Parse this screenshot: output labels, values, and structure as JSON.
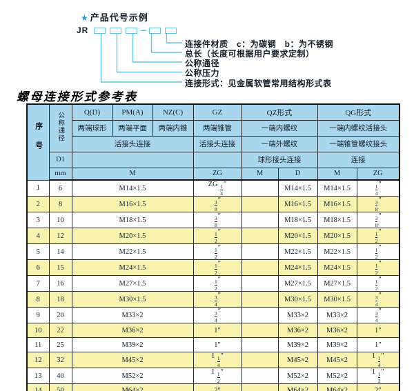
{
  "diagram": {
    "star": "★",
    "title": "产品代号示例",
    "code_prefix": "JR",
    "labels": [
      "连接件材质　c：为碳钢　b：为不锈钢",
      "总长（长度可根据用户要求定制）",
      "公称通径",
      "公称压力",
      "连接形式：见金属软管常用结构形式表"
    ]
  },
  "table": {
    "title": "螺母连接形式参考表",
    "header": {
      "col_no": "序号",
      "col_dn": "公称通径",
      "dn_sub1": "D1",
      "dn_sub2": "mm",
      "groups": [
        "Q(D)",
        "PM(A)",
        "NZ(C)",
        "GZ",
        "QZ形式",
        "QG形式"
      ],
      "desc1": [
        "两端球形",
        "两端平面",
        "两端内锥",
        "两端锥管",
        "一端内螺纹",
        "一端内螺纹活接头"
      ],
      "desc2": [
        "活接头连接",
        "活接头连接",
        "一端外螺纹",
        "一端锥管螺纹接头"
      ],
      "desc3": [
        "球形接头连接",
        "连接"
      ],
      "units": [
        "M",
        "ZG",
        "M",
        "D",
        "M",
        "ZG"
      ]
    },
    "rows": [
      {
        "no": "1",
        "dn": "6",
        "m": "M14×1.5",
        "zg": "ZG 1/4″",
        "qz_m": "",
        "qz_d": "M14×1.5",
        "qg_m": "M14×1.5",
        "qg_zg": "1/4″"
      },
      {
        "no": "2",
        "dn": "8",
        "m": "M16×1.5",
        "zg": "3/8″",
        "qz_m": "",
        "qz_d": "M16×1.5",
        "qg_m": "M16×1.5",
        "qg_zg": "3/8″"
      },
      {
        "no": "3",
        "dn": "10",
        "m": "M18×1.5",
        "zg": "3/8″",
        "qz_m": "",
        "qz_d": "M18×1.5",
        "qg_m": "M18×1.5",
        "qg_zg": "3/8″"
      },
      {
        "no": "4",
        "dn": "12",
        "m": "M20×1.5",
        "zg": "1/2″",
        "qz_m": "",
        "qz_d": "M20×1.5",
        "qg_m": "M20×1.5",
        "qg_zg": "1/2″"
      },
      {
        "no": "5",
        "dn": "14",
        "m": "M22×1.5",
        "zg": "1/2″",
        "qz_m": "",
        "qz_d": "M22×1.5",
        "qg_m": "M22×1.5",
        "qg_zg": "1/2″"
      },
      {
        "no": "6",
        "dn": "15",
        "m": "M24×1.5",
        "zg": "1/2″",
        "qz_m": "",
        "qz_d": "M24×1.5",
        "qg_m": "M24×1.5",
        "qg_zg": "1/2″"
      },
      {
        "no": "7",
        "dn": "16",
        "m": "M27×1.5",
        "zg": "1/2″",
        "qz_m": "",
        "qz_d": "M27×1.5",
        "qg_m": "M27×1.5",
        "qg_zg": "1/2″"
      },
      {
        "no": "8",
        "dn": "18",
        "m": "M30×1.5",
        "zg": "3/4″",
        "qz_m": "",
        "qz_d": "M30×1.5",
        "qg_m": "M30×1.5",
        "qg_zg": "3/4″"
      },
      {
        "no": "9",
        "dn": "20",
        "m": "M33×2",
        "zg": "3/4″",
        "qz_m": "",
        "qz_d": "M33×2",
        "qg_m": "M33×2",
        "qg_zg": "3/4″"
      },
      {
        "no": "10",
        "dn": "22",
        "m": "M36×2",
        "zg": "1″",
        "qz_m": "",
        "qz_d": "M36×2",
        "qg_m": "M36×2",
        "qg_zg": "1″"
      },
      {
        "no": "11",
        "dn": "25",
        "m": "M39×2",
        "zg": "1″",
        "qz_m": "",
        "qz_d": "M39×2",
        "qg_m": "M39×2",
        "qg_zg": "1″"
      },
      {
        "no": "12",
        "dn": "32",
        "m": "M45×2",
        "zg": "1 1/4″",
        "qz_m": "",
        "qz_d": "M45×2",
        "qg_m": "M45×2",
        "qg_zg": "1 1/4″"
      },
      {
        "no": "13",
        "dn": "40",
        "m": "M52×2",
        "zg": "1 1/2″",
        "qz_m": "",
        "qz_d": "M52×2",
        "qg_m": "M52×2",
        "qg_zg": "1 1/2″"
      },
      {
        "no": "14",
        "dn": "50",
        "m": "M64×2",
        "zg": "2″",
        "qz_m": "",
        "qz_d": "M64×2",
        "qg_m": "M64×2",
        "qg_zg": "2″"
      }
    ]
  },
  "colors": {
    "header_blue": "#a9d7ee",
    "row_yellow": "#f8f3ae",
    "line_cyan": "#62c4e0",
    "star_blue": "#1e9ad6",
    "text_dark": "#141e28"
  }
}
